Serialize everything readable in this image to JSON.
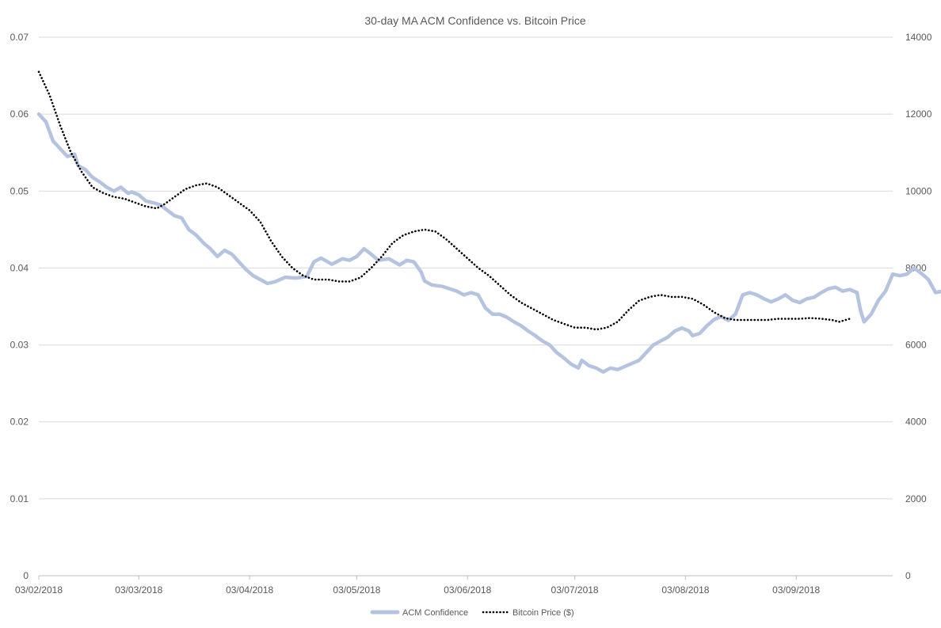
{
  "chart_data": {
    "type": "line",
    "title": "30-day MA ACM Confidence vs. Bitcoin Price",
    "xlabel": "",
    "ylabel": "",
    "x_tick_labels": [
      "03/02/2018",
      "03/03/2018",
      "03/04/2018",
      "03/05/2018",
      "03/06/2018",
      "03/07/2018",
      "03/08/2018",
      "03/09/2018"
    ],
    "xlim": [
      "03/02/2018",
      "30/09/2018"
    ],
    "y_left": {
      "ticks": [
        "0",
        "0.01",
        "0.02",
        "0.03",
        "0.04",
        "0.05",
        "0.06",
        "0.07"
      ],
      "ylim": [
        0,
        0.07
      ]
    },
    "y_right": {
      "ticks": [
        "0",
        "2000",
        "4000",
        "6000",
        "8000",
        "10000",
        "12000",
        "14000"
      ],
      "ylim": [
        0,
        14000
      ]
    },
    "grid": true,
    "legend_position": "bottom",
    "colors": {
      "acm": "#b4c3df",
      "btc": "#000000",
      "grid": "#d9d9d9",
      "text": "#595959"
    },
    "series": [
      {
        "name": "ACM Confidence",
        "axis": "left",
        "style": "solid",
        "points": [
          [
            "03/02/2018",
            0.06
          ],
          [
            "05/02/2018",
            0.059
          ],
          [
            "07/02/2018",
            0.0565
          ],
          [
            "09/02/2018",
            0.0555
          ],
          [
            "11/02/2018",
            0.0545
          ],
          [
            "13/02/2018",
            0.0548
          ],
          [
            "14/02/2018",
            0.0533
          ],
          [
            "16/02/2018",
            0.0528
          ],
          [
            "18/02/2018",
            0.0518
          ],
          [
            "20/02/2018",
            0.0512
          ],
          [
            "22/02/2018",
            0.0505
          ],
          [
            "24/02/2018",
            0.05
          ],
          [
            "26/02/2018",
            0.0505
          ],
          [
            "28/02/2018",
            0.0497
          ],
          [
            "01/03/2018",
            0.0499
          ],
          [
            "03/03/2018",
            0.0495
          ],
          [
            "05/03/2018",
            0.0487
          ],
          [
            "07/03/2018",
            0.0485
          ],
          [
            "09/03/2018",
            0.0482
          ],
          [
            "11/03/2018",
            0.0475
          ],
          [
            "13/03/2018",
            0.0468
          ],
          [
            "15/03/2018",
            0.0465
          ],
          [
            "17/03/2018",
            0.045
          ],
          [
            "19/03/2018",
            0.0443
          ],
          [
            "21/03/2018",
            0.0433
          ],
          [
            "23/03/2018",
            0.0425
          ],
          [
            "25/03/2018",
            0.0415
          ],
          [
            "27/03/2018",
            0.0423
          ],
          [
            "29/03/2018",
            0.0418
          ],
          [
            "31/03/2018",
            0.0408
          ],
          [
            "02/04/2018",
            0.0398
          ],
          [
            "04/04/2018",
            0.039
          ],
          [
            "06/04/2018",
            0.0385
          ],
          [
            "08/04/2018",
            0.038
          ],
          [
            "10/04/2018",
            0.0382
          ],
          [
            "13/04/2018",
            0.0388
          ],
          [
            "16/04/2018",
            0.0387
          ],
          [
            "19/04/2018",
            0.0389
          ],
          [
            "21/04/2018",
            0.0408
          ],
          [
            "23/04/2018",
            0.0413
          ],
          [
            "26/04/2018",
            0.0405
          ],
          [
            "29/04/2018",
            0.0412
          ],
          [
            "01/05/2018",
            0.041
          ],
          [
            "03/05/2018",
            0.0415
          ],
          [
            "05/05/2018",
            0.0425
          ],
          [
            "07/05/2018",
            0.0418
          ],
          [
            "09/05/2018",
            0.041
          ],
          [
            "12/05/2018",
            0.0412
          ],
          [
            "15/05/2018",
            0.0404
          ],
          [
            "17/05/2018",
            0.041
          ],
          [
            "19/05/2018",
            0.0408
          ],
          [
            "21/05/2018",
            0.0395
          ],
          [
            "22/05/2018",
            0.0383
          ],
          [
            "24/05/2018",
            0.0378
          ],
          [
            "27/05/2018",
            0.0376
          ],
          [
            "29/05/2018",
            0.0373
          ],
          [
            "31/05/2018",
            0.037
          ],
          [
            "02/06/2018",
            0.0365
          ],
          [
            "04/06/2018",
            0.0368
          ],
          [
            "06/06/2018",
            0.0365
          ],
          [
            "08/06/2018",
            0.0348
          ],
          [
            "10/06/2018",
            0.034
          ],
          [
            "12/06/2018",
            0.034
          ],
          [
            "14/06/2018",
            0.0336
          ],
          [
            "16/06/2018",
            0.033
          ],
          [
            "18/06/2018",
            0.0325
          ],
          [
            "20/06/2018",
            0.0318
          ],
          [
            "22/06/2018",
            0.0312
          ],
          [
            "24/06/2018",
            0.0305
          ],
          [
            "26/06/2018",
            0.03
          ],
          [
            "28/06/2018",
            0.029
          ],
          [
            "30/06/2018",
            0.0283
          ],
          [
            "02/07/2018",
            0.0275
          ],
          [
            "04/07/2018",
            0.027
          ],
          [
            "05/07/2018",
            0.028
          ],
          [
            "07/07/2018",
            0.0273
          ],
          [
            "09/07/2018",
            0.027
          ],
          [
            "11/07/2018",
            0.0265
          ],
          [
            "13/07/2018",
            0.027
          ],
          [
            "15/07/2018",
            0.0268
          ],
          [
            "17/07/2018",
            0.0272
          ],
          [
            "19/07/2018",
            0.0276
          ],
          [
            "21/07/2018",
            0.028
          ],
          [
            "23/07/2018",
            0.029
          ],
          [
            "25/07/2018",
            0.03
          ],
          [
            "27/07/2018",
            0.0305
          ],
          [
            "29/07/2018",
            0.031
          ],
          [
            "31/07/2018",
            0.0318
          ],
          [
            "02/08/2018",
            0.0322
          ],
          [
            "04/08/2018",
            0.0318
          ],
          [
            "05/08/2018",
            0.0312
          ],
          [
            "07/08/2018",
            0.0315
          ],
          [
            "09/08/2018",
            0.0325
          ],
          [
            "11/08/2018",
            0.0333
          ],
          [
            "13/08/2018",
            0.0337
          ],
          [
            "15/08/2018",
            0.0332
          ],
          [
            "17/08/2018",
            0.034
          ],
          [
            "19/08/2018",
            0.0365
          ],
          [
            "21/08/2018",
            0.0368
          ],
          [
            "23/08/2018",
            0.0365
          ],
          [
            "25/08/2018",
            0.036
          ],
          [
            "27/08/2018",
            0.0356
          ],
          [
            "29/08/2018",
            0.036
          ],
          [
            "31/08/2018",
            0.0365
          ],
          [
            "02/09/2018",
            0.0358
          ],
          [
            "04/09/2018",
            0.0355
          ],
          [
            "06/09/2018",
            0.036
          ],
          [
            "08/09/2018",
            0.0362
          ],
          [
            "10/09/2018",
            0.0368
          ],
          [
            "12/09/2018",
            0.0373
          ],
          [
            "14/09/2018",
            0.0375
          ],
          [
            "16/09/2018",
            0.037
          ],
          [
            "18/09/2018",
            0.0372
          ],
          [
            "20/09/2018",
            0.0368
          ],
          [
            "21/09/2018",
            0.0345
          ],
          [
            "22/09/2018",
            0.033
          ],
          [
            "24/09/2018",
            0.034
          ],
          [
            "26/09/2018",
            0.0358
          ],
          [
            "28/09/2018",
            0.037
          ],
          [
            "30/09/2018",
            0.0392
          ],
          [
            "02/10/2018",
            0.039
          ],
          [
            "04/10/2018",
            0.0392
          ],
          [
            "06/10/2018",
            0.04
          ],
          [
            "08/10/2018",
            0.0393
          ],
          [
            "10/10/2018",
            0.0385
          ],
          [
            "12/10/2018",
            0.0368
          ],
          [
            "14/10/2018",
            0.037
          ],
          [
            "16/10/2018",
            0.0372
          ],
          [
            "18/10/2018",
            0.038
          ],
          [
            "20/10/2018",
            0.0375
          ],
          [
            "22/10/2018",
            0.0377
          ],
          [
            "24/10/2018",
            0.0368
          ],
          [
            "27/10/2018",
            0.0366
          ]
        ]
      },
      {
        "name": "Bitcoin Price ($)",
        "axis": "right",
        "style": "dotted",
        "points": [
          [
            "03/02/2018",
            13100
          ],
          [
            "06/02/2018",
            12500
          ],
          [
            "09/02/2018",
            11700
          ],
          [
            "12/02/2018",
            11000
          ],
          [
            "15/02/2018",
            10500
          ],
          [
            "18/02/2018",
            10100
          ],
          [
            "21/02/2018",
            9950
          ],
          [
            "24/02/2018",
            9850
          ],
          [
            "27/02/2018",
            9800
          ],
          [
            "02/03/2018",
            9700
          ],
          [
            "05/03/2018",
            9600
          ],
          [
            "08/03/2018",
            9550
          ],
          [
            "10/03/2018",
            9650
          ],
          [
            "13/03/2018",
            9850
          ],
          [
            "16/03/2018",
            10050
          ],
          [
            "19/03/2018",
            10150
          ],
          [
            "22/03/2018",
            10200
          ],
          [
            "25/03/2018",
            10100
          ],
          [
            "28/03/2018",
            9900
          ],
          [
            "31/03/2018",
            9700
          ],
          [
            "03/04/2018",
            9500
          ],
          [
            "06/04/2018",
            9200
          ],
          [
            "09/04/2018",
            8700
          ],
          [
            "12/04/2018",
            8300
          ],
          [
            "15/04/2018",
            8000
          ],
          [
            "18/04/2018",
            7800
          ],
          [
            "21/04/2018",
            7700
          ],
          [
            "25/04/2018",
            7700
          ],
          [
            "28/04/2018",
            7650
          ],
          [
            "01/05/2018",
            7650
          ],
          [
            "04/05/2018",
            7750
          ],
          [
            "07/05/2018",
            8000
          ],
          [
            "10/05/2018",
            8300
          ],
          [
            "13/05/2018",
            8650
          ],
          [
            "16/05/2018",
            8850
          ],
          [
            "19/05/2018",
            8950
          ],
          [
            "22/05/2018",
            9000
          ],
          [
            "25/05/2018",
            8950
          ],
          [
            "28/05/2018",
            8750
          ],
          [
            "31/05/2018",
            8500
          ],
          [
            "03/06/2018",
            8250
          ],
          [
            "06/06/2018",
            8000
          ],
          [
            "09/06/2018",
            7800
          ],
          [
            "12/06/2018",
            7550
          ],
          [
            "15/06/2018",
            7300
          ],
          [
            "18/06/2018",
            7100
          ],
          [
            "21/06/2018",
            6950
          ],
          [
            "24/06/2018",
            6800
          ],
          [
            "27/06/2018",
            6650
          ],
          [
            "30/06/2018",
            6550
          ],
          [
            "03/07/2018",
            6450
          ],
          [
            "06/07/2018",
            6450
          ],
          [
            "09/07/2018",
            6400
          ],
          [
            "12/07/2018",
            6450
          ],
          [
            "15/07/2018",
            6600
          ],
          [
            "18/07/2018",
            6900
          ],
          [
            "21/07/2018",
            7150
          ],
          [
            "24/07/2018",
            7250
          ],
          [
            "27/07/2018",
            7300
          ],
          [
            "30/07/2018",
            7250
          ],
          [
            "02/08/2018",
            7250
          ],
          [
            "05/08/2018",
            7200
          ],
          [
            "08/08/2018",
            7050
          ],
          [
            "11/08/2018",
            6850
          ],
          [
            "14/08/2018",
            6700
          ],
          [
            "17/08/2018",
            6650
          ],
          [
            "20/08/2018",
            6650
          ],
          [
            "23/08/2018",
            6650
          ],
          [
            "26/08/2018",
            6650
          ],
          [
            "29/08/2018",
            6680
          ],
          [
            "01/09/2018",
            6680
          ],
          [
            "04/09/2018",
            6680
          ],
          [
            "07/09/2018",
            6700
          ],
          [
            "10/09/2018",
            6680
          ],
          [
            "13/09/2018",
            6650
          ],
          [
            "15/09/2018",
            6600
          ],
          [
            "18/09/2018",
            6680
          ]
        ]
      }
    ]
  }
}
